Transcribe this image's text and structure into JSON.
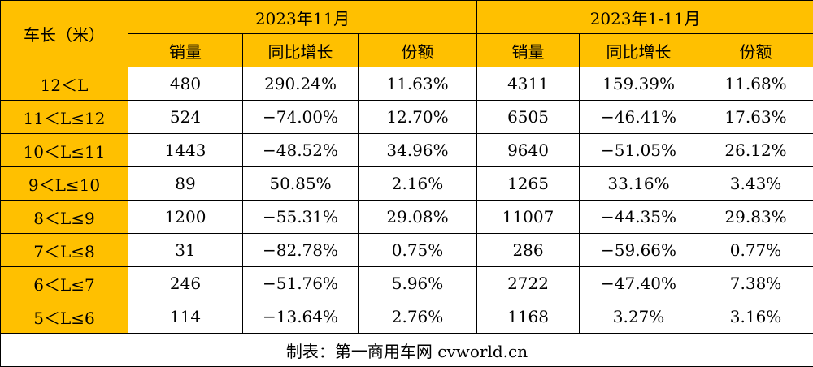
{
  "colors": {
    "header_bg": "#FFC000",
    "cell_bg": "#FFFFFF",
    "border": "#000000"
  },
  "table": {
    "row_header_label": "车长（米）",
    "groups": [
      "2023年11月",
      "2023年1-11月"
    ],
    "subheaders": [
      "销量",
      "同比增长",
      "份额",
      "销量",
      "同比增长",
      "份额"
    ],
    "rows": [
      {
        "label": "12＜L",
        "cells": [
          "480",
          "290.24%",
          "11.63%",
          "4311",
          "159.39%",
          "11.68%"
        ]
      },
      {
        "label": "11＜L≤12",
        "cells": [
          "524",
          "−74.00%",
          "12.70%",
          "6505",
          "−46.41%",
          "17.63%"
        ]
      },
      {
        "label": "10＜L≤11",
        "cells": [
          "1443",
          "−48.52%",
          "34.96%",
          "9640",
          "−51.05%",
          "26.12%"
        ]
      },
      {
        "label": "9＜L≤10",
        "cells": [
          "89",
          "50.85%",
          "2.16%",
          "1265",
          "33.16%",
          "3.43%"
        ]
      },
      {
        "label": "8＜L≤9",
        "cells": [
          "1200",
          "−55.31%",
          "29.08%",
          "11007",
          "−44.35%",
          "29.83%"
        ]
      },
      {
        "label": "7＜L≤8",
        "cells": [
          "31",
          "−82.78%",
          "0.75%",
          "286",
          "−59.66%",
          "0.77%"
        ]
      },
      {
        "label": "6＜L≤7",
        "cells": [
          "246",
          "−51.76%",
          "5.96%",
          "2722",
          "−47.40%",
          "7.38%"
        ]
      },
      {
        "label": "5＜L≤6",
        "cells": [
          "114",
          "−13.64%",
          "2.76%",
          "1168",
          "3.27%",
          "3.16%"
        ]
      }
    ],
    "footer": "制表：第一商用车网 cvworld.cn"
  }
}
